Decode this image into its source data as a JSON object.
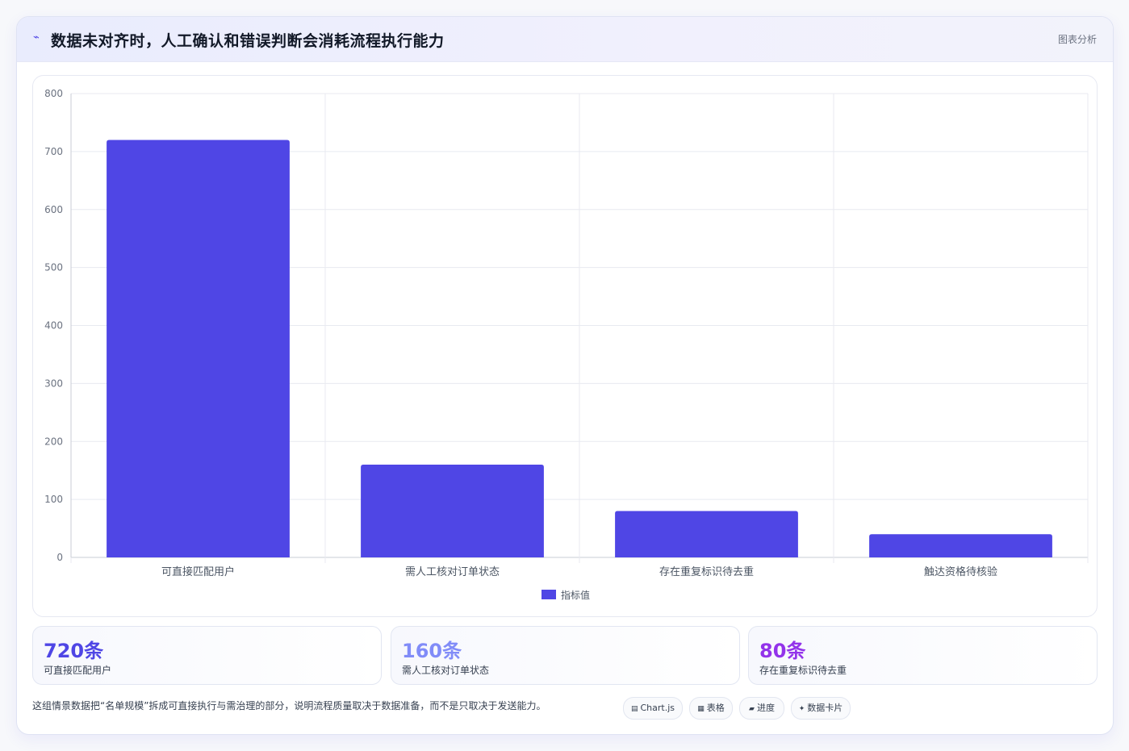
{
  "header": {
    "icon": "trend-icon",
    "title": "数据未对齐时，人工确认和错误判断会消耗流程执行能力",
    "tag": "图表分析"
  },
  "chart_data": {
    "type": "bar",
    "categories": [
      "可直接匹配用户",
      "需人工核对订单状态",
      "存在重复标识待去重",
      "触达资格待核验"
    ],
    "series": [
      {
        "name": "指标值",
        "values": [
          720,
          160,
          80,
          40
        ],
        "color": "#4f46e5"
      }
    ],
    "ylim": [
      0,
      800
    ],
    "yticks": [
      0,
      100,
      200,
      300,
      400,
      500,
      600,
      700,
      800
    ],
    "grid": true,
    "legend": "bottom"
  },
  "stats": [
    {
      "value": "720条",
      "label": "可直接匹配用户",
      "color": "#4f46e5"
    },
    {
      "value": "160条",
      "label": "需人工核对订单状态",
      "color": "#818cf8"
    },
    {
      "value": "80条",
      "label": "存在重复标识待去重",
      "color": "#9333ea"
    }
  ],
  "note": "这组情景数据把“名单规模”拆成可直接执行与需治理的部分，说明流程质量取决于数据准备，而不是只取决于发送能力。",
  "chips": [
    {
      "icon": "chart-icon",
      "label": "Chart.js"
    },
    {
      "icon": "table-icon",
      "label": "表格"
    },
    {
      "icon": "progress-icon",
      "label": "进度"
    },
    {
      "icon": "card-icon",
      "label": "数据卡片"
    }
  ]
}
